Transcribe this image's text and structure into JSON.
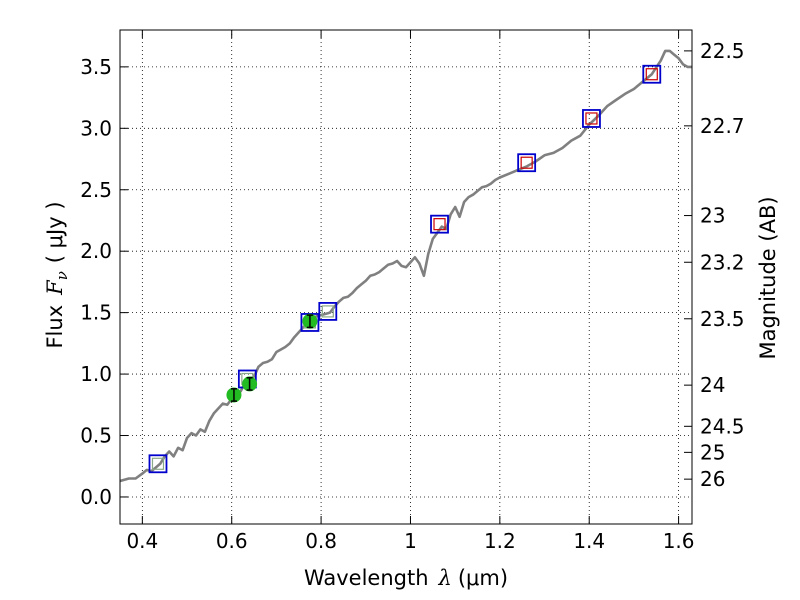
{
  "chart_data": {
    "type": "line",
    "xlabel": "Wavelength",
    "xlabel_symbol": "λ",
    "xlabel_unit": "(μm)",
    "ylabel": "Flux",
    "ylabel_symbol": "F",
    "ylabel_subscript": "ν",
    "ylabel_unit": "( μJy )",
    "y2label": "Magnitude (AB)",
    "xlim": [
      0.35,
      1.63
    ],
    "ylim": [
      -0.22,
      3.8
    ],
    "grid": true,
    "xticks": [
      0.4,
      0.6,
      0.8,
      1.0,
      1.2,
      1.4,
      1.6
    ],
    "xtick_labels": [
      "0.4",
      "0.6",
      "0.8",
      "1",
      "1.2",
      "1.4",
      "1.6"
    ],
    "yticks": [
      0.0,
      0.5,
      1.0,
      1.5,
      2.0,
      2.5,
      3.0,
      3.5
    ],
    "ytick_labels": [
      "0.0",
      "0.5",
      "1.0",
      "1.5",
      "2.0",
      "2.5",
      "3.0",
      "3.5"
    ],
    "mag_ticks": [
      {
        "label": "22.5",
        "flux": 3.63
      },
      {
        "label": "22.7",
        "flux": 3.02
      },
      {
        "label": "23",
        "flux": 2.29
      },
      {
        "label": "23.2",
        "flux": 1.91
      },
      {
        "label": "23.5",
        "flux": 1.45
      },
      {
        "label": "24",
        "flux": 0.91
      },
      {
        "label": "24.5",
        "flux": 0.575
      },
      {
        "label": "25",
        "flux": 0.363
      },
      {
        "label": "26",
        "flux": 0.145
      }
    ],
    "colors": {
      "model": "#808080",
      "square_outer": "#0000cc",
      "square_inner_blue": "#8aa88a",
      "square_inner_red": "#cc0000",
      "photometry": "#22bb22",
      "errorbar": "#000000",
      "grid": "#000000"
    },
    "series": [
      {
        "name": "model-spectrum",
        "type": "line",
        "x": [
          0.35,
          0.37,
          0.385,
          0.4,
          0.41,
          0.42,
          0.43,
          0.44,
          0.45,
          0.46,
          0.47,
          0.48,
          0.49,
          0.5,
          0.51,
          0.52,
          0.53,
          0.54,
          0.55,
          0.56,
          0.57,
          0.58,
          0.59,
          0.6,
          0.61,
          0.62,
          0.63,
          0.64,
          0.65,
          0.66,
          0.67,
          0.68,
          0.69,
          0.7,
          0.71,
          0.72,
          0.73,
          0.74,
          0.75,
          0.76,
          0.77,
          0.78,
          0.79,
          0.8,
          0.81,
          0.82,
          0.83,
          0.84,
          0.85,
          0.86,
          0.87,
          0.88,
          0.89,
          0.9,
          0.91,
          0.92,
          0.93,
          0.94,
          0.95,
          0.96,
          0.97,
          0.98,
          0.99,
          1.0,
          1.01,
          1.02,
          1.03,
          1.04,
          1.05,
          1.06,
          1.07,
          1.08,
          1.09,
          1.1,
          1.11,
          1.12,
          1.13,
          1.14,
          1.15,
          1.16,
          1.17,
          1.18,
          1.19,
          1.2,
          1.22,
          1.24,
          1.26,
          1.28,
          1.3,
          1.32,
          1.34,
          1.36,
          1.38,
          1.4,
          1.42,
          1.44,
          1.46,
          1.48,
          1.5,
          1.52,
          1.54,
          1.56,
          1.57,
          1.58,
          1.59,
          1.6,
          1.61,
          1.62,
          1.63
        ],
        "y": [
          0.13,
          0.15,
          0.15,
          0.19,
          0.22,
          0.21,
          0.24,
          0.27,
          0.33,
          0.37,
          0.33,
          0.4,
          0.38,
          0.48,
          0.52,
          0.5,
          0.55,
          0.53,
          0.62,
          0.68,
          0.72,
          0.76,
          0.75,
          0.8,
          0.83,
          0.86,
          0.93,
          0.96,
          0.98,
          1.06,
          1.09,
          1.1,
          1.12,
          1.18,
          1.2,
          1.22,
          1.25,
          1.3,
          1.34,
          1.38,
          1.42,
          1.45,
          1.47,
          1.48,
          1.49,
          1.5,
          1.55,
          1.59,
          1.62,
          1.63,
          1.66,
          1.7,
          1.73,
          1.76,
          1.8,
          1.81,
          1.83,
          1.86,
          1.89,
          1.9,
          1.92,
          1.88,
          1.87,
          1.91,
          1.95,
          1.9,
          1.8,
          1.98,
          2.1,
          2.15,
          2.2,
          2.18,
          2.3,
          2.36,
          2.28,
          2.4,
          2.44,
          2.46,
          2.49,
          2.52,
          2.53,
          2.55,
          2.58,
          2.6,
          2.63,
          2.66,
          2.69,
          2.73,
          2.78,
          2.8,
          2.84,
          2.9,
          2.94,
          3.03,
          3.1,
          3.18,
          3.23,
          3.28,
          3.32,
          3.38,
          3.44,
          3.55,
          3.63,
          3.63,
          3.6,
          3.57,
          3.52,
          3.5,
          3.5
        ]
      },
      {
        "name": "model-photometry-blue",
        "type": "square",
        "x": [
          0.435,
          0.635,
          0.775,
          0.815
        ],
        "y": [
          0.27,
          0.96,
          1.42,
          1.51
        ]
      },
      {
        "name": "model-photometry-red",
        "type": "square",
        "x": [
          1.065,
          1.26,
          1.405,
          1.54
        ],
        "y": [
          2.22,
          2.72,
          3.08,
          3.44
        ]
      },
      {
        "name": "observed-photometry",
        "type": "errorbar",
        "x": [
          0.605,
          0.64,
          0.775
        ],
        "y": [
          0.83,
          0.92,
          1.43
        ],
        "err": [
          0.05,
          0.05,
          0.05
        ]
      }
    ]
  }
}
